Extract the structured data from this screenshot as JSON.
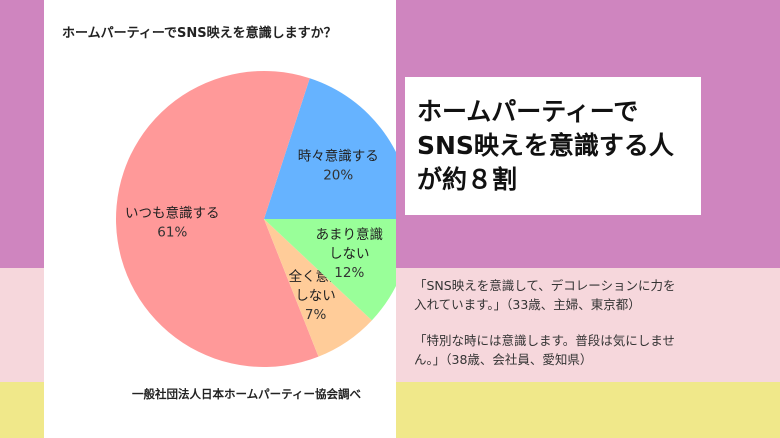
{
  "colors": {
    "band_top": "#cf85bf",
    "band_mid": "#f6d7dc",
    "band_bottom": "#f0e88a"
  },
  "chart_data": {
    "type": "pie",
    "title": "ホームパーティーでSNS映えを意識しますか？",
    "slices": [
      {
        "label_lines": [
          "時々意識する"
        ],
        "value": 20,
        "value_label": "20%",
        "color": "#66b3ff"
      },
      {
        "label_lines": [
          "いつも意識する"
        ],
        "value": 61,
        "value_label": "61%",
        "color": "#ff9999"
      },
      {
        "label_lines": [
          "全く意識",
          "しない"
        ],
        "value": 7,
        "value_label": "7%",
        "color": "#ffcc99"
      },
      {
        "label_lines": [
          "あまり意識",
          "しない"
        ],
        "value": 12,
        "value_label": "12%",
        "color": "#99ff99"
      }
    ],
    "source": "一般社団法人日本ホームパーティー協会調べ"
  },
  "headline": {
    "lines": [
      "ホームパーティーで",
      "SNS映えを意識する人",
      "が約８割"
    ]
  },
  "quotes": [
    {
      "lines": [
        "「SNS映えを意識して、デコレーションに力を",
        "入れています。」（33歳、主婦、東京都）"
      ]
    },
    {
      "lines": [
        "「特別な時には意識します。普段は気にしませ",
        "ん。」（38歳、会社員、愛知県）"
      ]
    }
  ]
}
